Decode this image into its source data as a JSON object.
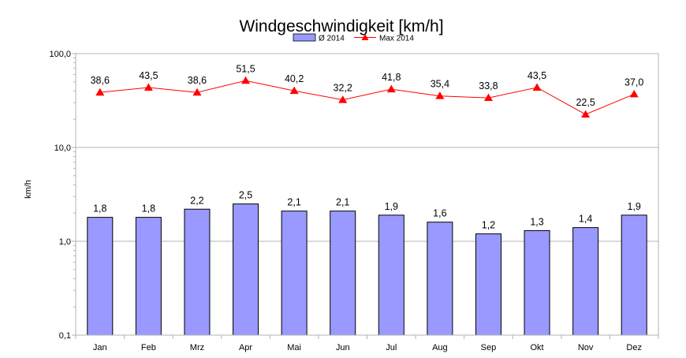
{
  "chart_data": {
    "type": "bar",
    "title": "Windgeschwindigkeit [km/h]",
    "xlabel": "",
    "ylabel": "km/h",
    "y_scale": "log",
    "ylim": [
      0.1,
      100
    ],
    "y_ticks": [
      "0,1",
      "1,0",
      "10,0",
      "100,0"
    ],
    "grid": true,
    "legend_position": "top",
    "categories": [
      "Jan",
      "Feb",
      "Mrz",
      "Apr",
      "Mai",
      "Jun",
      "Jul",
      "Aug",
      "Sep",
      "Okt",
      "Nov",
      "Dez"
    ],
    "series": [
      {
        "name": "Ø 2014",
        "type": "bar",
        "color": "#9999ff",
        "values": [
          1.8,
          1.8,
          2.2,
          2.5,
          2.1,
          2.1,
          1.9,
          1.6,
          1.2,
          1.3,
          1.4,
          1.9
        ],
        "labels": [
          "1,8",
          "1,8",
          "2,2",
          "2,5",
          "2,1",
          "2,1",
          "1,9",
          "1,6",
          "1,2",
          "1,3",
          "1,4",
          "1,9"
        ]
      },
      {
        "name": "Max 2014",
        "type": "line",
        "color": "#ff0000",
        "values": [
          38.6,
          43.5,
          38.6,
          51.5,
          40.2,
          32.2,
          41.8,
          35.4,
          33.8,
          43.5,
          22.5,
          37.0
        ],
        "labels": [
          "38,6",
          "43,5",
          "38,6",
          "51,5",
          "40,2",
          "32,2",
          "41,8",
          "35,4",
          "33,8",
          "43,5",
          "22,5",
          "37,0"
        ]
      }
    ]
  }
}
